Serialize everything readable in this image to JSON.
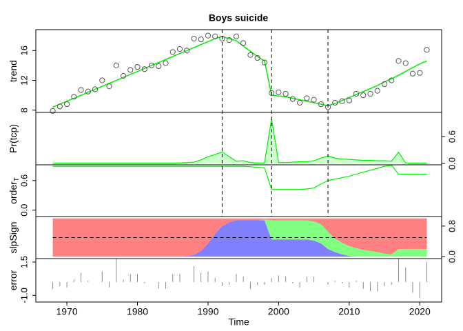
{
  "chart_data": [
    {
      "type": "trend",
      "title": "Boys suicide",
      "ylabel": "trend",
      "x": [
        1968,
        1969,
        1970,
        1971,
        1972,
        1973,
        1974,
        1975,
        1976,
        1977,
        1978,
        1979,
        1980,
        1981,
        1982,
        1983,
        1984,
        1985,
        1986,
        1987,
        1988,
        1989,
        1990,
        1991,
        1992,
        1993,
        1994,
        1995,
        1996,
        1997,
        1998,
        1999,
        2000,
        2001,
        2002,
        2003,
        2004,
        2005,
        2006,
        2007,
        2008,
        2009,
        2010,
        2011,
        2012,
        2013,
        2014,
        2015,
        2016,
        2017,
        2018,
        2019,
        2020,
        2021
      ],
      "values": [
        7.9,
        8.5,
        8.8,
        9.8,
        10.7,
        10.5,
        10.8,
        12.0,
        11.2,
        14.0,
        12.6,
        13.4,
        13.8,
        13.5,
        14.0,
        13.9,
        14.3,
        15.8,
        16.2,
        16.0,
        17.6,
        17.5,
        18.0,
        17.9,
        17.6,
        17.4,
        17.9,
        17.0,
        15.4,
        15.0,
        14.4,
        10.3,
        10.4,
        10.2,
        9.5,
        9.0,
        9.6,
        9.4,
        8.8,
        8.4,
        9.0,
        9.2,
        9.3,
        10.2,
        10.0,
        10.2,
        10.6,
        11.5,
        12.0,
        14.6,
        14.3,
        12.9,
        13.0,
        16.1
      ],
      "trend": [
        8.4,
        8.8,
        9.2,
        9.6,
        10.0,
        10.4,
        10.8,
        11.2,
        11.6,
        12.0,
        12.4,
        12.8,
        13.2,
        13.6,
        14.0,
        14.4,
        14.8,
        15.2,
        15.6,
        16.0,
        16.4,
        16.8,
        17.2,
        17.6,
        17.9,
        17.6,
        17.3,
        16.6,
        15.9,
        15.2,
        14.6,
        10.0,
        9.9,
        9.8,
        9.6,
        9.4,
        9.2,
        9.0,
        8.8,
        8.6,
        8.9,
        9.3,
        9.7,
        10.1,
        10.5,
        10.9,
        11.3,
        11.8,
        12.2,
        12.7,
        13.2,
        13.7,
        14.2,
        14.6
      ],
      "color": "#00ee00",
      "point_color": "#555555",
      "changepoints": [
        1992,
        1999,
        2007
      ],
      "xlim": [
        1965.6,
        2023.1
      ],
      "ylim": [
        7.7,
        18.8
      ],
      "yticks": [
        8,
        12,
        16
      ],
      "axis_side": "left"
    },
    {
      "type": "area",
      "ylabel": "Pr(tcp)",
      "x": [
        1968,
        1969,
        1970,
        1971,
        1972,
        1973,
        1974,
        1975,
        1976,
        1977,
        1978,
        1979,
        1980,
        1981,
        1982,
        1983,
        1984,
        1985,
        1986,
        1987,
        1988,
        1989,
        1990,
        1991,
        1992,
        1993,
        1994,
        1995,
        1996,
        1997,
        1998,
        1999,
        2000,
        2001,
        2002,
        2003,
        2004,
        2005,
        2006,
        2007,
        2008,
        2009,
        2010,
        2011,
        2012,
        2013,
        2014,
        2015,
        2016,
        2017,
        2018,
        2019,
        2020,
        2021
      ],
      "values": [
        0.01,
        0.01,
        0.01,
        0.01,
        0.01,
        0.01,
        0.01,
        0.01,
        0.01,
        0.01,
        0.01,
        0.01,
        0.01,
        0.01,
        0.01,
        0.01,
        0.01,
        0.01,
        0.01,
        0.02,
        0.03,
        0.08,
        0.15,
        0.2,
        0.26,
        0.15,
        0.05,
        0.06,
        0.02,
        0.01,
        0.01,
        1.0,
        0.02,
        0.02,
        0.03,
        0.04,
        0.04,
        0.06,
        0.12,
        0.17,
        0.12,
        0.1,
        0.09,
        0.08,
        0.07,
        0.07,
        0.06,
        0.06,
        0.05,
        0.25,
        0.01,
        0.01,
        0.01,
        0.01
      ],
      "color": "#00ee00",
      "fill": "#ccffcc",
      "xlim": [
        1965.6,
        2023.1
      ],
      "ylim": [
        -0.03,
        1.14
      ],
      "yticks": [
        {
          "value": 0,
          "label": "0.0"
        },
        0.6
      ],
      "axis_side": "right"
    },
    {
      "type": "line",
      "ylabel": "order",
      "ylabel_sub": "T",
      "x": [
        1968,
        1969,
        1970,
        1971,
        1972,
        1973,
        1974,
        1975,
        1976,
        1977,
        1978,
        1979,
        1980,
        1981,
        1982,
        1983,
        1984,
        1985,
        1986,
        1987,
        1988,
        1989,
        1990,
        1991,
        1992,
        1993,
        1994,
        1995,
        1996,
        1997,
        1998,
        1999,
        2000,
        2001,
        2002,
        2003,
        2004,
        2005,
        2006,
        2007,
        2008,
        2009,
        2010,
        2011,
        2012,
        2013,
        2014,
        2015,
        2016,
        2017,
        2018,
        2019,
        2020,
        2021
      ],
      "values": [
        0.89,
        0.89,
        0.89,
        0.89,
        0.89,
        0.89,
        0.89,
        0.89,
        0.89,
        0.89,
        0.89,
        0.89,
        0.89,
        0.89,
        0.89,
        0.89,
        0.89,
        0.89,
        0.89,
        0.89,
        0.89,
        0.89,
        0.89,
        0.89,
        0.89,
        0.89,
        0.89,
        0.89,
        0.88,
        0.87,
        0.86,
        0.42,
        0.42,
        0.42,
        0.42,
        0.42,
        0.43,
        0.45,
        0.53,
        0.6,
        0.63,
        0.66,
        0.69,
        0.73,
        0.77,
        0.81,
        0.85,
        0.89,
        0.91,
        0.73,
        0.73,
        0.73,
        0.73,
        0.73
      ],
      "color": "#00ee00",
      "xlim": [
        1965.6,
        2023.1
      ],
      "ylim": [
        -0.13,
        0.92
      ],
      "yticks": [
        {
          "value": 0,
          "label": "0.0"
        },
        0.6
      ],
      "axis_side": "left"
    },
    {
      "type": "stacked_area",
      "ylabel": "slpSign",
      "x": [
        1968,
        1969,
        1970,
        1971,
        1972,
        1973,
        1974,
        1975,
        1976,
        1977,
        1978,
        1979,
        1980,
        1981,
        1982,
        1983,
        1984,
        1985,
        1986,
        1987,
        1988,
        1989,
        1990,
        1991,
        1992,
        1993,
        1994,
        1995,
        1996,
        1997,
        1998,
        1999,
        2000,
        2001,
        2002,
        2003,
        2004,
        2005,
        2006,
        2007,
        2008,
        2009,
        2010,
        2011,
        2012,
        2013,
        2014,
        2015,
        2016,
        2017,
        2018,
        2019,
        2020,
        2021
      ],
      "layers": [
        {
          "color": "#8080ff",
          "values": [
            0,
            0,
            0,
            0,
            0,
            0,
            0,
            0,
            0,
            0,
            0,
            0,
            0,
            0,
            0,
            0,
            0,
            0,
            0,
            0.02,
            0.05,
            0.15,
            0.35,
            0.6,
            0.8,
            0.9,
            0.95,
            0.95,
            0.95,
            0.95,
            0.95,
            0.45,
            0.45,
            0.45,
            0.45,
            0.45,
            0.45,
            0.42,
            0.35,
            0.2,
            0.12,
            0.06,
            0.02,
            0,
            0,
            0,
            0,
            0,
            0,
            0,
            0,
            0,
            0,
            0
          ]
        },
        {
          "color": "#80ff80",
          "values": [
            0,
            0,
            0,
            0,
            0,
            0,
            0,
            0,
            0,
            0,
            0,
            0,
            0,
            0,
            0,
            0,
            0,
            0,
            0,
            0,
            0,
            0,
            0,
            0,
            0,
            0,
            0,
            0,
            0,
            0,
            0.02,
            0.5,
            0.5,
            0.5,
            0.5,
            0.5,
            0.5,
            0.5,
            0.5,
            0.45,
            0.35,
            0.3,
            0.26,
            0.22,
            0.18,
            0.15,
            0.12,
            0.08,
            0.06,
            0.2,
            0.2,
            0.2,
            0.2,
            0.2
          ]
        },
        {
          "color": "#ff8080",
          "values": [
            1,
            1,
            1,
            1,
            1,
            1,
            1,
            1,
            1,
            1,
            1,
            1,
            1,
            1,
            1,
            1,
            1,
            1,
            1,
            0.98,
            0.95,
            0.85,
            0.65,
            0.4,
            0.2,
            0.1,
            0.05,
            0.05,
            0.05,
            0.05,
            0.03,
            0.05,
            0.05,
            0.05,
            0.05,
            0.05,
            0.05,
            0.08,
            0.15,
            0.35,
            0.53,
            0.64,
            0.72,
            0.78,
            0.82,
            0.85,
            0.88,
            0.92,
            0.94,
            0.8,
            0.8,
            0.8,
            0.8,
            0.8
          ]
        }
      ],
      "ref_line": 0.5,
      "xlim": [
        1965.6,
        2023.1
      ],
      "ylim": [
        -0.05,
        1.05
      ],
      "yticks": [
        {
          "value": 0,
          "label": "0.0"
        },
        0.8
      ],
      "axis_side": "right"
    },
    {
      "type": "spike",
      "ylabel": "error",
      "xlabel": "Time",
      "x": [
        1968,
        1969,
        1970,
        1971,
        1972,
        1973,
        1974,
        1975,
        1976,
        1977,
        1978,
        1979,
        1980,
        1981,
        1982,
        1983,
        1984,
        1985,
        1986,
        1987,
        1988,
        1989,
        1990,
        1991,
        1992,
        1993,
        1994,
        1995,
        1996,
        1997,
        1998,
        1999,
        2000,
        2001,
        2002,
        2003,
        2004,
        2005,
        2006,
        2007,
        2008,
        2009,
        2010,
        2011,
        2012,
        2013,
        2014,
        2015,
        2016,
        2017,
        2018,
        2019,
        2020,
        2021
      ],
      "values": [
        -0.5,
        -0.3,
        -0.4,
        0.2,
        0.7,
        0.1,
        0.0,
        0.8,
        -0.4,
        2.0,
        0.2,
        0.6,
        0.6,
        -0.1,
        0.0,
        -0.5,
        -0.5,
        0.6,
        0.6,
        0.0,
        1.2,
        0.7,
        0.8,
        0.3,
        -0.3,
        -0.2,
        0.6,
        0.4,
        -0.5,
        -0.2,
        -0.2,
        0.3,
        0.5,
        0.4,
        -0.1,
        -0.4,
        0.4,
        0.4,
        0.0,
        -0.2,
        0.1,
        -0.1,
        -0.4,
        0.1,
        -0.5,
        -0.7,
        -0.7,
        -0.3,
        -0.2,
        1.9,
        1.1,
        -0.8,
        -1.2,
        1.5
      ],
      "color": "#888888",
      "xlim": [
        1965.6,
        2023.1
      ],
      "ylim": [
        -1.5,
        1.76
      ],
      "yticks": [
        {
          "value": -1,
          "label": "-1.0"
        },
        1.5
      ],
      "axis_side": "left",
      "xticks": [
        1970,
        1980,
        1990,
        2000,
        2010,
        2020
      ]
    }
  ]
}
